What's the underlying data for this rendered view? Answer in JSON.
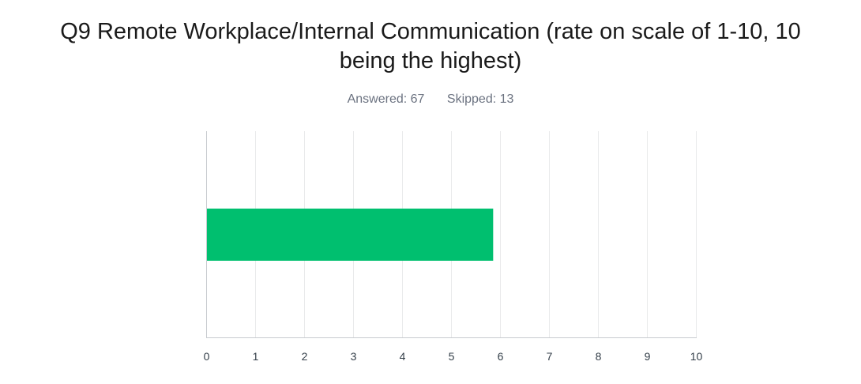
{
  "title_lines": [
    "Q9 Remote Workplace/Internal Communication (rate on scale of 1-10, 10",
    "being the highest)"
  ],
  "stats": {
    "answered": "Answered: 67",
    "skipped": "Skipped: 13"
  },
  "colors": {
    "bar": "#00bf6f",
    "grid": "#e9eaeb",
    "axis": "#c8cbcf"
  },
  "chart_data": {
    "type": "bar",
    "orientation": "horizontal",
    "categories": [
      ""
    ],
    "values": [
      5.86
    ],
    "xlim": [
      0,
      10
    ],
    "xticks": [
      "0",
      "1",
      "2",
      "3",
      "4",
      "5",
      "6",
      "7",
      "8",
      "9",
      "10"
    ],
    "grid": true,
    "title": "Q9 Remote Workplace/Internal Communication (rate on scale of 1-10, 10 being the highest)",
    "xlabel": "",
    "ylabel": ""
  }
}
